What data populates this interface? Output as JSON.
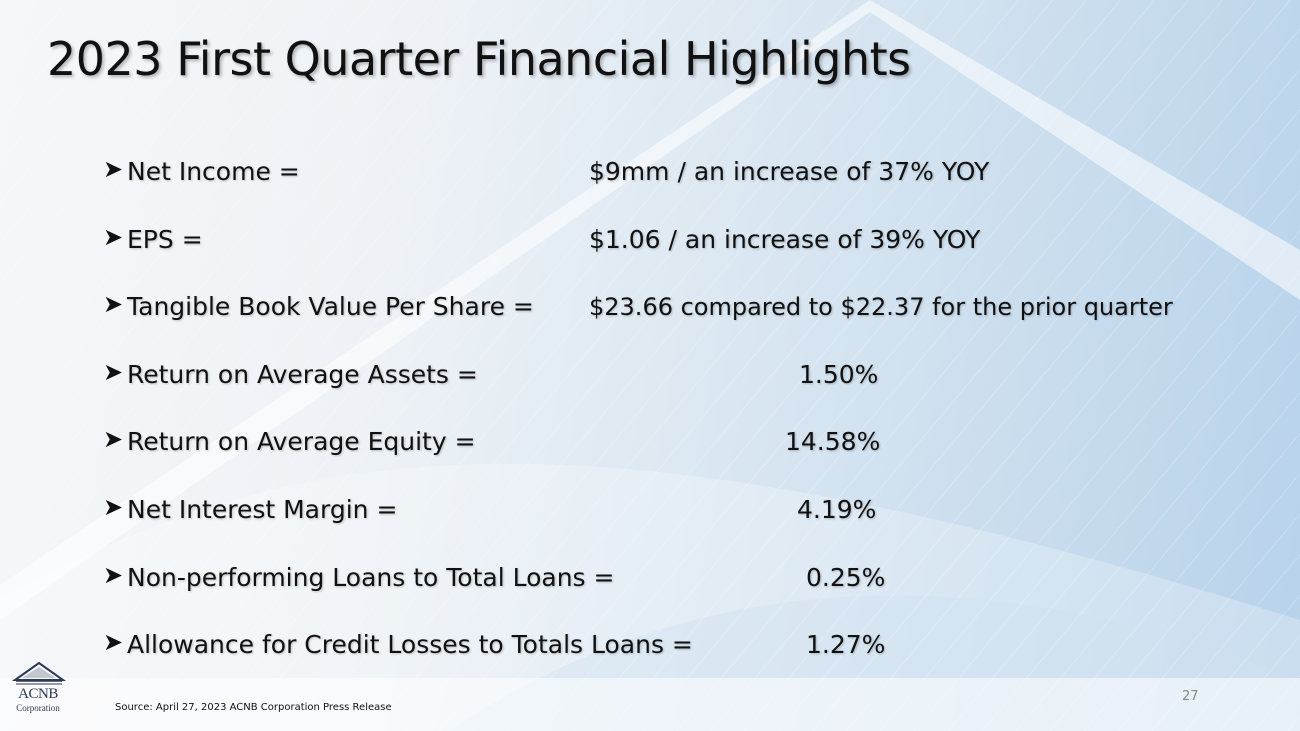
{
  "slide": {
    "title": "2023 First Quarter Financial Highlights",
    "bullet_icon": "arrowhead-bullet",
    "bullet_glyph": "➤",
    "items": [
      {
        "label": "Net Income =",
        "value": "$9mm / an increase of 37% YOY"
      },
      {
        "label": "EPS =",
        "value": "$1.06 /  an increase of 39% YOY"
      },
      {
        "label": "Tangible Book Value Per Share =",
        "value": "$23.66 compared to $22.37 for the prior quarter"
      },
      {
        "label": "Return on Average Assets =",
        "value": "1.50%"
      },
      {
        "label": "Return on Average Equity =",
        "value": "14.58%"
      },
      {
        "label": "Net Interest Margin =",
        "value": "4.19%"
      },
      {
        "label": "Non-performing Loans to Total Loans =",
        "value": "0.25%"
      },
      {
        "label": "Allowance for Credit Losses to Totals Loans =",
        "value": "1.27%"
      }
    ],
    "footer": {
      "source": "Source:  April 27, 2023 ACNB Corporation Press Release",
      "page_number": "27"
    },
    "logo": {
      "name": "ACNB",
      "subtitle": "Corporation"
    },
    "colors": {
      "text": "#111111",
      "accent_blue": "#b7d2ea",
      "logo": "#2b3a55"
    }
  }
}
